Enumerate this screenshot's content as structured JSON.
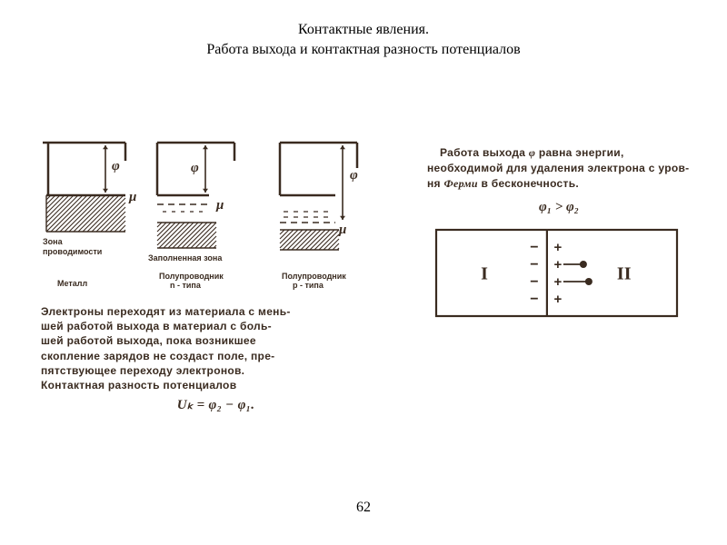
{
  "title": {
    "line1": "Контактные явления.",
    "line2": "Работа выхода и контактная разность потенциалов"
  },
  "page_number": "62",
  "left": {
    "diagrams": {
      "stroke_color": "#3a2b20",
      "stroke_width": 2.5,
      "hatch_spacing": 5,
      "mu_label": "μ",
      "phi_label": "φ",
      "zone_label_line1": "Зона",
      "zone_label_line2": "проводимости",
      "filled_zone_label": "Заполненная зона",
      "type_labels": [
        "Металл",
        "Полупроводник\nn - типа",
        "Полупроводник\np - типа"
      ]
    },
    "body_text": "Электроны переходят из материала с мень-\nшей работой выхода в материал с боль-\nшей работой выхода, пока возникшее\nскопление зарядов не создаст поле, пре-\nпятствующее переходу электронов.\nКонтактная разность потенциалов",
    "formula": "Uₖ = φ₂ − φ₁."
  },
  "right": {
    "body_text_parts": {
      "p1": "Работа выхода ",
      "phi": "φ",
      "p2": " равна энергии, необходимой для удаления электрона с уров-\nня ",
      "fermi": "Ферми",
      "p3": " в бесконечность."
    },
    "inequality": "φ₁ > φ₂",
    "diagram": {
      "stroke_color": "#3a2b20",
      "stroke_width": 2.2,
      "label_left": "I",
      "label_right": "II",
      "charge_rows": 4,
      "minus": "−",
      "plus": "+",
      "dot_radius": 4
    }
  }
}
